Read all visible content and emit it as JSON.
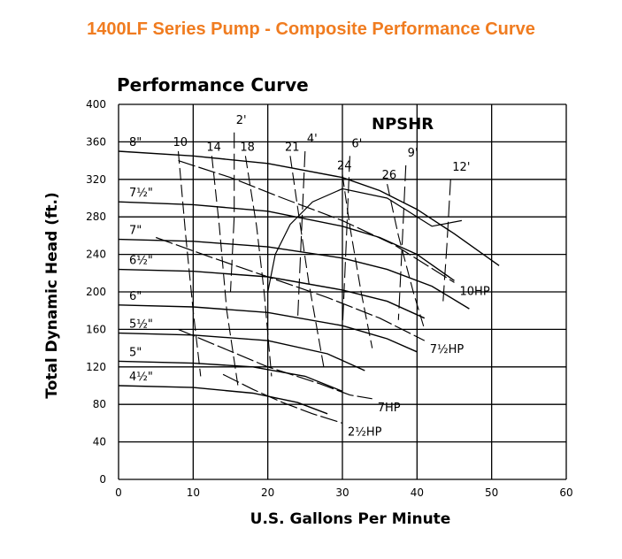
{
  "page": {
    "title": "1400LF Series Pump - Composite Performance Curve"
  },
  "chart_data": {
    "type": "line",
    "title": "Performance Curve",
    "xlabel": "U.S. Gallons Per Minute",
    "ylabel": "Total Dynamic Head (ft.)",
    "xlim": [
      0,
      60
    ],
    "ylim": [
      0,
      400
    ],
    "xticks": [
      0,
      10,
      20,
      30,
      40,
      50,
      60
    ],
    "xtick_labels": [
      "0",
      "10",
      "20",
      "30",
      "40",
      "50",
      "60"
    ],
    "yticks": [
      0,
      40,
      80,
      120,
      160,
      200,
      240,
      280,
      320,
      360,
      400
    ],
    "ytick_labels": [
      "0",
      "40",
      "80",
      "120",
      "160",
      "200",
      "240",
      "280",
      "320",
      "360",
      "400"
    ],
    "grid": true,
    "annotation": "NPSHR",
    "colors": {
      "title": "#f07c20",
      "lines": "#000000"
    },
    "series": [
      {
        "name": "8\"",
        "kind": "impeller",
        "x": [
          0,
          10,
          20,
          30,
          35,
          40,
          45,
          51
        ],
        "y": [
          350,
          345,
          337,
          322,
          308,
          288,
          262,
          228
        ]
      },
      {
        "name": "7½\"",
        "kind": "impeller",
        "x": [
          0,
          10,
          20,
          30,
          35,
          40,
          45
        ],
        "y": [
          296,
          293,
          286,
          270,
          258,
          240,
          212
        ]
      },
      {
        "name": "7\"",
        "kind": "impeller",
        "x": [
          0,
          10,
          20,
          30,
          36,
          42,
          47
        ],
        "y": [
          256,
          254,
          248,
          236,
          224,
          206,
          182
        ]
      },
      {
        "name": "6½\"",
        "kind": "impeller",
        "x": [
          0,
          10,
          20,
          30,
          36,
          41
        ],
        "y": [
          224,
          222,
          216,
          202,
          190,
          172
        ]
      },
      {
        "name": "6\"",
        "kind": "impeller",
        "x": [
          0,
          10,
          20,
          30,
          36,
          40
        ],
        "y": [
          186,
          184,
          178,
          164,
          150,
          136
        ]
      },
      {
        "name": "5½\"",
        "kind": "impeller",
        "x": [
          0,
          10,
          20,
          28,
          33
        ],
        "y": [
          156,
          154,
          148,
          134,
          116
        ]
      },
      {
        "name": "5\"",
        "kind": "impeller",
        "x": [
          0,
          10,
          18,
          25,
          30
        ],
        "y": [
          126,
          124,
          120,
          110,
          94
        ]
      },
      {
        "name": "4½\"",
        "kind": "impeller",
        "x": [
          0,
          10,
          18,
          24,
          28
        ],
        "y": [
          100,
          98,
          92,
          82,
          70
        ]
      },
      {
        "name": "10HP",
        "kind": "horsepower",
        "x": [
          8,
          15,
          22,
          30,
          37,
          45
        ],
        "y": [
          340,
          322,
          300,
          276,
          250,
          210
        ]
      },
      {
        "name": "7½HP",
        "kind": "horsepower",
        "x": [
          5,
          12,
          20,
          28,
          35,
          41
        ],
        "y": [
          258,
          238,
          216,
          194,
          172,
          148
        ]
      },
      {
        "name": "7HP",
        "kind": "horsepower",
        "x": [
          8,
          14,
          20,
          27,
          31,
          34
        ],
        "y": [
          160,
          140,
          120,
          102,
          90,
          86
        ]
      },
      {
        "name": "2½HP",
        "kind": "horsepower",
        "x": [
          14,
          18,
          22,
          26,
          30
        ],
        "y": [
          112,
          96,
          82,
          70,
          60
        ]
      },
      {
        "name": "NPSHR",
        "kind": "npshr",
        "x": [
          20,
          21,
          23,
          26,
          30,
          36,
          42,
          46
        ],
        "y": [
          200,
          240,
          272,
          296,
          310,
          300,
          270,
          276
        ]
      }
    ],
    "efficiency_labels": [
      "10",
      "14",
      "18",
      "21",
      "24",
      "26"
    ],
    "efficiency_lines": [
      {
        "name": "10",
        "x": [
          8,
          9,
          10,
          11
        ],
        "y": [
          350,
          260,
          180,
          110
        ]
      },
      {
        "name": "14",
        "x": [
          12.5,
          13.5,
          14.5,
          16
        ],
        "y": [
          345,
          270,
          180,
          100
        ]
      },
      {
        "name": "18",
        "x": [
          17,
          18.5,
          19.5,
          20.5
        ],
        "y": [
          345,
          270,
          200,
          110
        ]
      },
      {
        "name": "21",
        "x": [
          23,
          24,
          25.5,
          27.5
        ],
        "y": [
          345,
          290,
          210,
          120
        ]
      },
      {
        "name": "24",
        "x": [
          30,
          31,
          32.5,
          34
        ],
        "y": [
          325,
          270,
          200,
          140
        ]
      },
      {
        "name": "26",
        "x": [
          36,
          37.5,
          39.5,
          41
        ],
        "y": [
          315,
          260,
          200,
          160
        ]
      }
    ],
    "npshr_labels": [
      "2'",
      "4'",
      "6'",
      "9'",
      "12'"
    ],
    "npshr_lines": [
      {
        "name": "2'",
        "x": [
          15.5,
          15.5,
          15
        ],
        "y": [
          370,
          280,
          200
        ]
      },
      {
        "name": "4'",
        "x": [
          25,
          24.5,
          24
        ],
        "y": [
          350,
          260,
          170
        ]
      },
      {
        "name": "6'",
        "x": [
          31,
          30.5,
          30
        ],
        "y": [
          345,
          250,
          160
        ]
      },
      {
        "name": "9'",
        "x": [
          38.5,
          38,
          37.5
        ],
        "y": [
          335,
          250,
          170
        ]
      },
      {
        "name": "12'",
        "x": [
          44.5,
          44,
          43.5
        ],
        "y": [
          320,
          250,
          190
        ]
      }
    ]
  }
}
